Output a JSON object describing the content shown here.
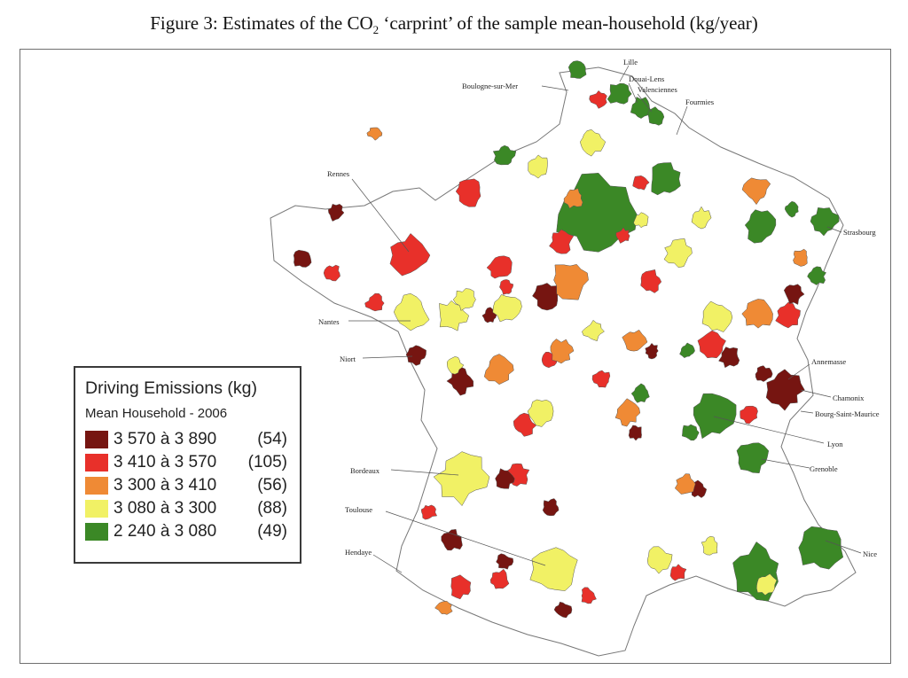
{
  "caption": {
    "prefix": "Figure 3: Estimates of the CO",
    "sub": "2",
    "suffix": " ‘carprint’ of the sample mean-household (kg/year)"
  },
  "legend": {
    "title": "Driving Emissions (kg)",
    "subtitle": "Mean Household - 2006",
    "classes": [
      {
        "range": "3 570 à 3 890",
        "count": "(54)",
        "color": "#761511"
      },
      {
        "range": "3 410 à 3 570",
        "count": "(105)",
        "color": "#e8302a"
      },
      {
        "range": "3 300 à 3 410",
        "count": "(56)",
        "color": "#ef8a35"
      },
      {
        "range": "3 080 à 3 300",
        "count": "(88)",
        "color": "#f1f165"
      },
      {
        "range": "2 240 à 3 080",
        "count": "(49)",
        "color": "#3b8826"
      }
    ]
  },
  "cities": [
    "Lille",
    "Douai-Lens",
    "Valenciennes",
    "Fourmies",
    "Boulogne-sur-Mer",
    "Strasbourg",
    "Rennes",
    "Nantes",
    "Niort",
    "Annemasse",
    "Chamonix",
    "Bourg-Saint-Maurice",
    "Lyon",
    "Grenoble",
    "Bordeaux",
    "Toulouse",
    "Hendaye",
    "Nice"
  ]
}
